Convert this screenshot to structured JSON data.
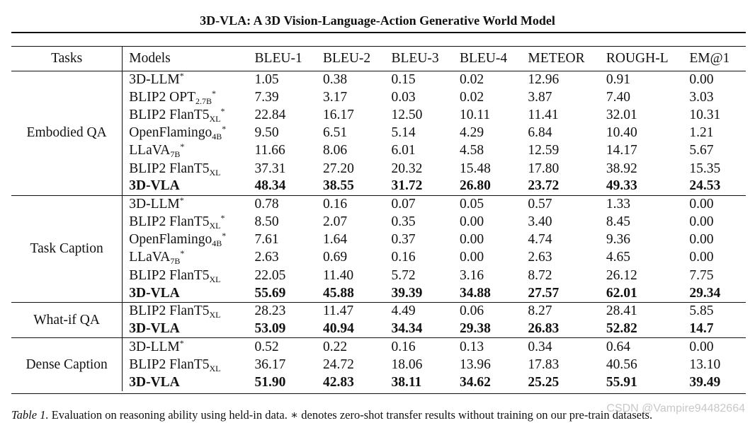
{
  "header": "3D-VLA: A 3D Vision-Language-Action Generative World Model",
  "columns": [
    "Tasks",
    "Models",
    "BLEU-1",
    "BLEU-2",
    "BLEU-3",
    "BLEU-4",
    "METEOR",
    "ROUGH-L",
    "EM@1"
  ],
  "groups": [
    {
      "task": "Embodied QA",
      "rows": [
        {
          "model": "3D-LLM",
          "sub": "",
          "star": true,
          "bold": false,
          "values": [
            "1.05",
            "0.38",
            "0.15",
            "0.02",
            "12.96",
            "0.91",
            "0.00"
          ]
        },
        {
          "model": "BLIP2 OPT",
          "sub": "2.7B",
          "star": true,
          "bold": false,
          "values": [
            "7.39",
            "3.17",
            "0.03",
            "0.02",
            "3.87",
            "7.40",
            "3.03"
          ]
        },
        {
          "model": "BLIP2 FlanT5",
          "sub": "XL",
          "star": true,
          "bold": false,
          "values": [
            "22.84",
            "16.17",
            "12.50",
            "10.11",
            "11.41",
            "32.01",
            "10.31"
          ]
        },
        {
          "model": "OpenFlamingo",
          "sub": "4B",
          "star": true,
          "bold": false,
          "values": [
            "9.50",
            "6.51",
            "5.14",
            "4.29",
            "6.84",
            "10.40",
            "1.21"
          ]
        },
        {
          "model": "LLaVA",
          "sub": "7B",
          "star": true,
          "bold": false,
          "values": [
            "11.66",
            "8.06",
            "6.01",
            "4.58",
            "12.59",
            "14.17",
            "5.67"
          ]
        },
        {
          "model": "BLIP2 FlanT5",
          "sub": "XL",
          "star": false,
          "bold": false,
          "values": [
            "37.31",
            "27.20",
            "20.32",
            "15.48",
            "17.80",
            "38.92",
            "15.35"
          ]
        },
        {
          "model": "3D-VLA",
          "sub": "",
          "star": false,
          "bold": true,
          "values": [
            "48.34",
            "38.55",
            "31.72",
            "26.80",
            "23.72",
            "49.33",
            "24.53"
          ]
        }
      ]
    },
    {
      "task": "Task Caption",
      "rows": [
        {
          "model": "3D-LLM",
          "sub": "",
          "star": true,
          "bold": false,
          "values": [
            "0.78",
            "0.16",
            "0.07",
            "0.05",
            "0.57",
            "1.33",
            "0.00"
          ]
        },
        {
          "model": "BLIP2 FlanT5",
          "sub": "XL",
          "star": true,
          "bold": false,
          "values": [
            "8.50",
            "2.07",
            "0.35",
            "0.00",
            "3.40",
            "8.45",
            "0.00"
          ]
        },
        {
          "model": "OpenFlamingo",
          "sub": "4B",
          "star": true,
          "bold": false,
          "values": [
            "7.61",
            "1.64",
            "0.37",
            "0.00",
            "4.74",
            "9.36",
            "0.00"
          ]
        },
        {
          "model": "LLaVA",
          "sub": "7B",
          "star": true,
          "bold": false,
          "values": [
            "2.63",
            "0.69",
            "0.16",
            "0.00",
            "2.63",
            "4.65",
            "0.00"
          ]
        },
        {
          "model": "BLIP2 FlanT5",
          "sub": "XL",
          "star": false,
          "bold": false,
          "values": [
            "22.05",
            "11.40",
            "5.72",
            "3.16",
            "8.72",
            "26.12",
            "7.75"
          ]
        },
        {
          "model": "3D-VLA",
          "sub": "",
          "star": false,
          "bold": true,
          "values": [
            "55.69",
            "45.88",
            "39.39",
            "34.88",
            "27.57",
            "62.01",
            "29.34"
          ]
        }
      ]
    },
    {
      "task": "What-if QA",
      "rows": [
        {
          "model": "BLIP2 FlanT5",
          "sub": "XL",
          "star": false,
          "bold": false,
          "values": [
            "28.23",
            "11.47",
            "4.49",
            "0.06",
            "8.27",
            "28.41",
            "5.85"
          ]
        },
        {
          "model": "3D-VLA",
          "sub": "",
          "star": false,
          "bold": true,
          "values": [
            "53.09",
            "40.94",
            "34.34",
            "29.38",
            "26.83",
            "52.82",
            "14.7"
          ]
        }
      ]
    },
    {
      "task": "Dense Caption",
      "rows": [
        {
          "model": "3D-LLM",
          "sub": "",
          "star": true,
          "bold": false,
          "values": [
            "0.52",
            "0.22",
            "0.16",
            "0.13",
            "0.34",
            "0.64",
            "0.00"
          ]
        },
        {
          "model": "BLIP2 FlanT5",
          "sub": "XL",
          "star": false,
          "bold": false,
          "values": [
            "36.17",
            "24.72",
            "18.06",
            "13.96",
            "17.83",
            "40.56",
            "13.10"
          ]
        },
        {
          "model": "3D-VLA",
          "sub": "",
          "star": false,
          "bold": true,
          "values": [
            "51.90",
            "42.83",
            "38.11",
            "34.62",
            "25.25",
            "55.91",
            "39.49"
          ]
        }
      ]
    }
  ],
  "caption": {
    "label": "Table 1.",
    "text": " Evaluation on reasoning ability using held-in data. ∗ denotes zero-shot transfer results without training on our pre-train datasets."
  },
  "watermark": "CSDN @Vampire94482664"
}
